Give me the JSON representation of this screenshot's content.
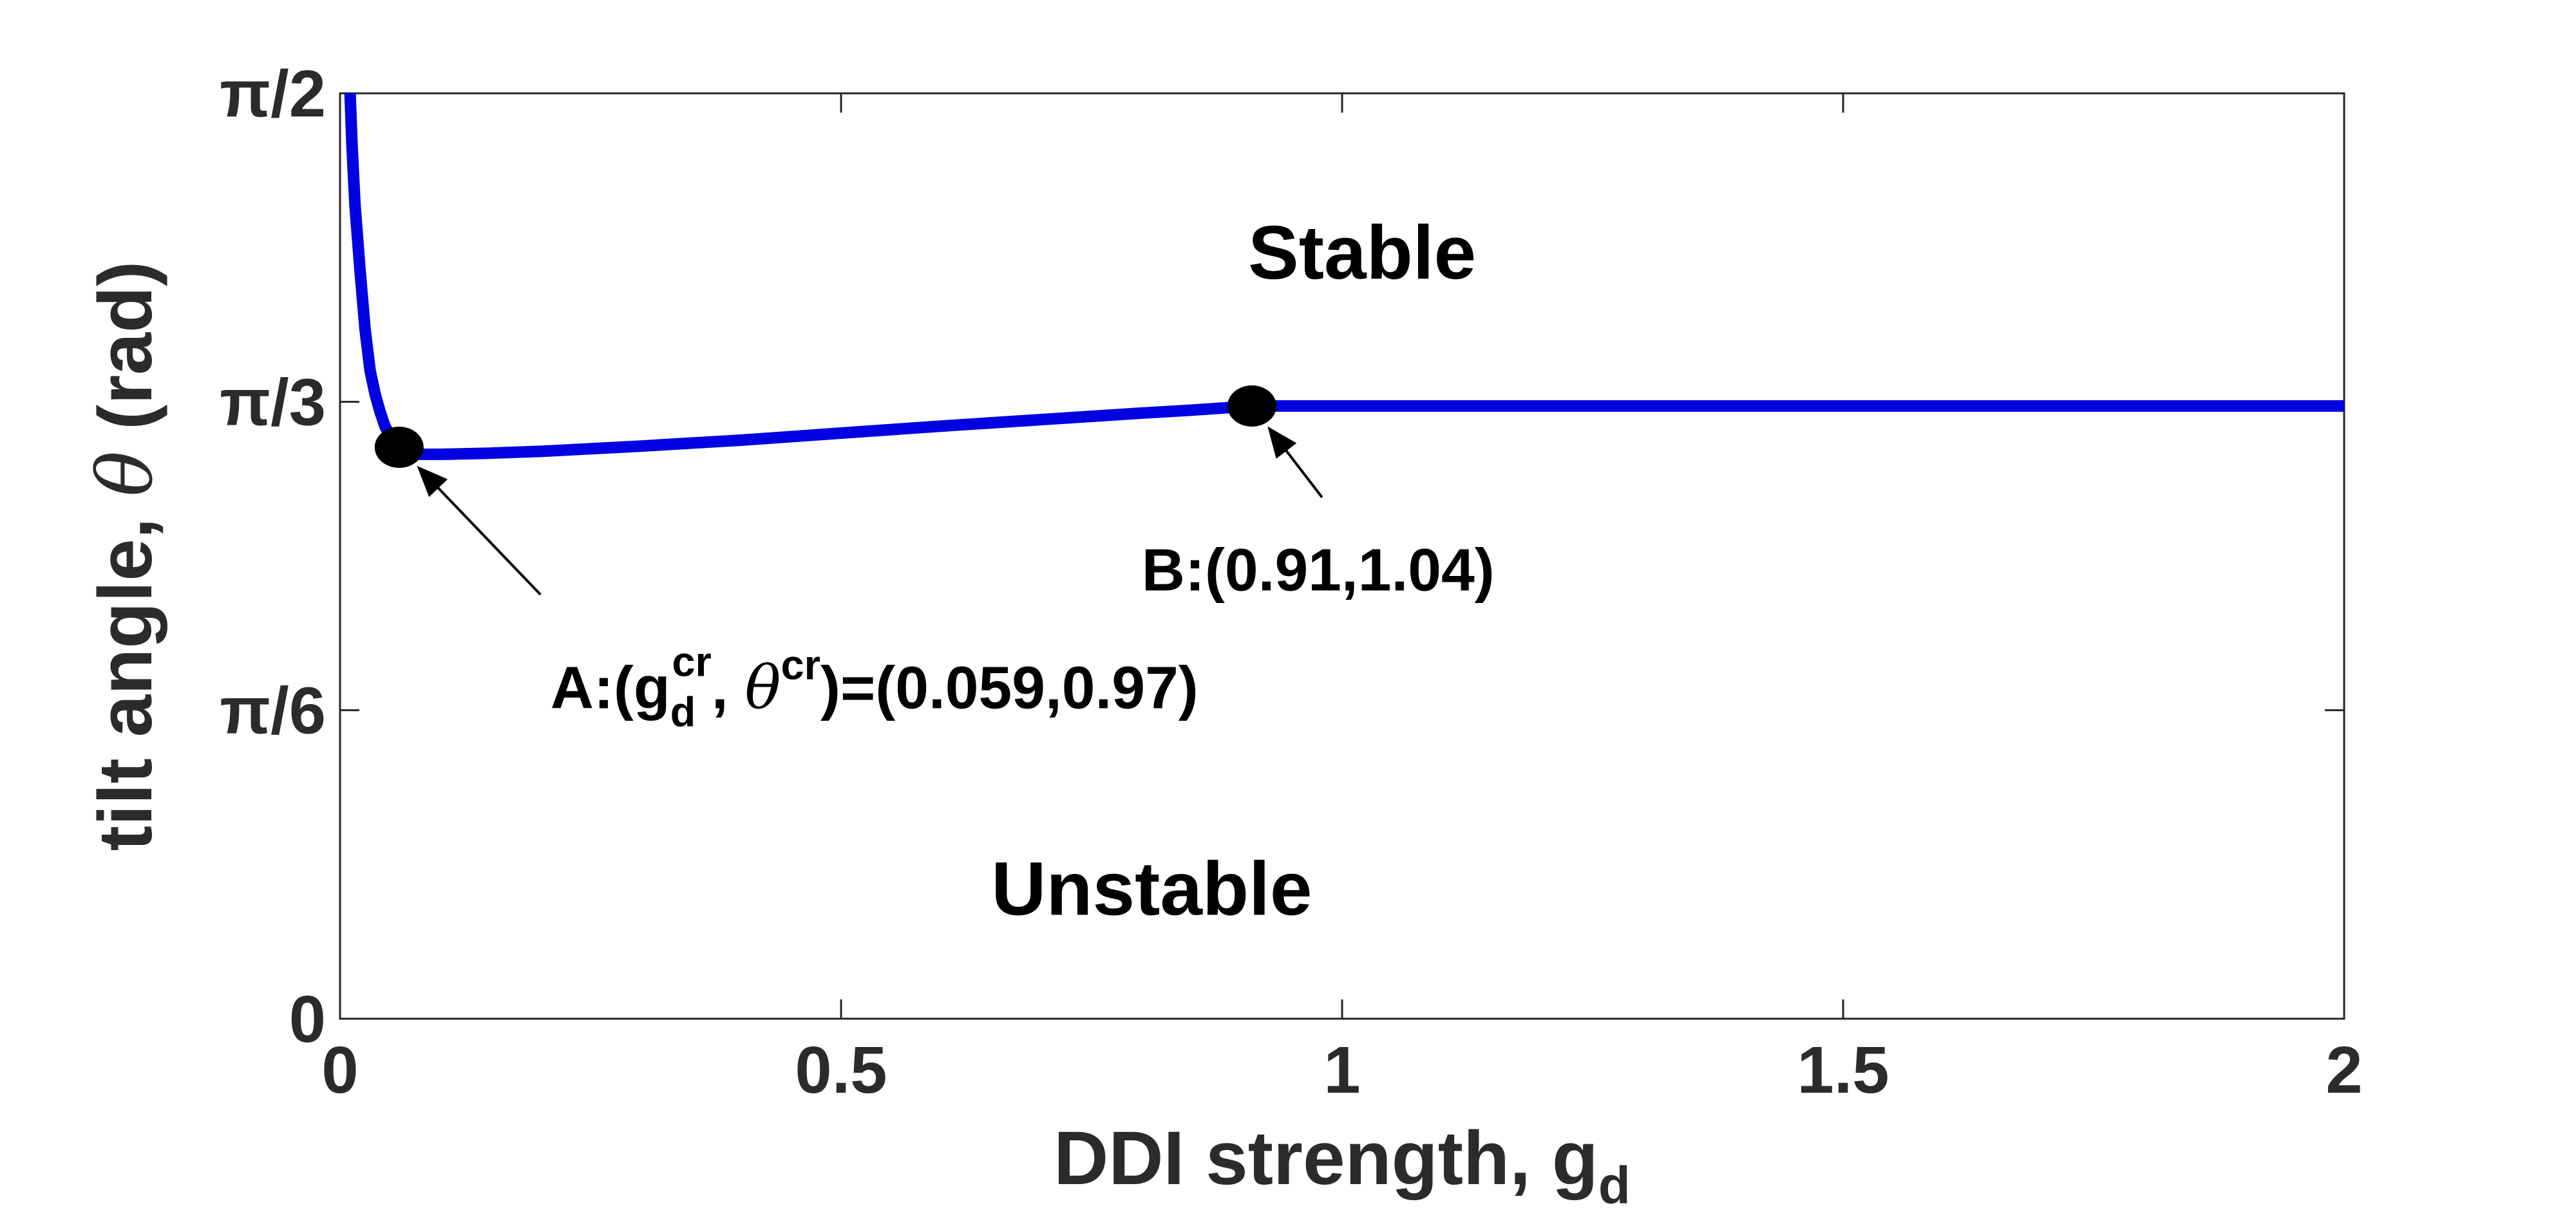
{
  "chart_data": {
    "type": "line",
    "xlabel": {
      "main": "DDI strength, g",
      "sub": "d"
    },
    "ylabel": {
      "pre": "tilt angle, ",
      "sym": "θ",
      "post": " (rad)"
    },
    "xlim": [
      0,
      2
    ],
    "ylim": [
      0,
      1.5708
    ],
    "x_ticks": [
      {
        "value": 0,
        "label": "0"
      },
      {
        "value": 0.5,
        "label": "0.5"
      },
      {
        "value": 1,
        "label": "1"
      },
      {
        "value": 1.5,
        "label": "1.5"
      },
      {
        "value": 2,
        "label": "2"
      }
    ],
    "y_ticks": [
      {
        "value": 0,
        "label": "0"
      },
      {
        "value": 0.5236,
        "label": "π/6"
      },
      {
        "value": 1.0472,
        "label": "π/3"
      },
      {
        "value": 1.5708,
        "label": "π/2"
      }
    ],
    "grid": false,
    "series": [
      {
        "color": "#0000e0",
        "x": [
          0.01,
          0.012,
          0.015,
          0.02,
          0.025,
          0.03,
          0.035,
          0.04,
          0.045,
          0.05,
          0.055,
          0.059,
          0.07,
          0.08,
          0.1,
          0.15,
          0.2,
          0.3,
          0.4,
          0.5,
          0.6,
          0.7,
          0.8,
          0.85,
          0.91,
          1.0,
          1.2,
          1.5,
          1.8,
          2.0
        ],
        "y": [
          1.5708,
          1.48,
          1.38,
          1.27,
          1.17,
          1.1,
          1.06,
          1.03,
          1.005,
          0.99,
          0.975,
          0.97,
          0.962,
          0.958,
          0.958,
          0.96,
          0.963,
          0.972,
          0.982,
          0.994,
          1.006,
          1.017,
          1.028,
          1.033,
          1.04,
          1.04,
          1.04,
          1.04,
          1.04,
          1.04
        ]
      }
    ],
    "points": [
      {
        "name": "A",
        "x": 0.059,
        "y": 0.97
      },
      {
        "name": "B",
        "x": 0.91,
        "y": 1.04
      }
    ],
    "regions": [
      {
        "label": "Stable",
        "x": 1.02,
        "y": 1.3
      },
      {
        "label": "Unstable",
        "x": 0.81,
        "y": 0.22
      }
    ],
    "annotations": [
      {
        "target": "A",
        "prefix": "A:(g",
        "sub1": "d",
        "sup1": "cr",
        "mid": ", ",
        "sym": "θ",
        "sup2": "cr",
        "suffix": ")=(0.059,0.97)",
        "text_x": 0.21,
        "text_y": 0.56,
        "arrow_from": [
          0.2,
          0.72
        ]
      },
      {
        "target": "B",
        "text": "B:(0.91,1.04)",
        "text_x": 0.8,
        "text_y": 0.76,
        "arrow_from": [
          0.98,
          0.885
        ]
      }
    ]
  }
}
